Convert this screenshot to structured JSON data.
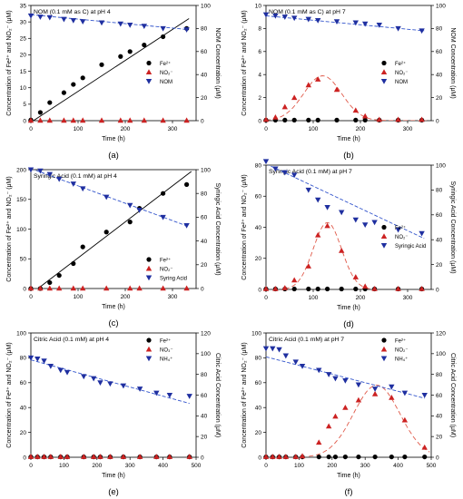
{
  "chart_data": [
    {
      "type": "scatter",
      "panel_label": "(a)",
      "title": "NOM (0.1 mM as C) at pH 4",
      "xlabel": "Time (h)",
      "ylabel": "Concentration of Fe²⁺ and NO₂⁻ (μM)",
      "y2label": "NOM Concentration (μM)",
      "xlim": [
        0,
        350
      ],
      "ylim": [
        0,
        35
      ],
      "y2lim": [
        0,
        100
      ],
      "xticks": [
        "0",
        "100",
        "200",
        "300"
      ],
      "yticks": [
        "0",
        "5",
        "10",
        "15",
        "20",
        "25",
        "30",
        "35"
      ],
      "y2ticks": [
        "0",
        "20",
        "40",
        "60",
        "80",
        "100"
      ],
      "legend_position": "center-right",
      "series": [
        {
          "name": "Fe²⁺",
          "marker": "circle",
          "color": "#000000",
          "axis": "left",
          "x": [
            0,
            20,
            40,
            70,
            90,
            110,
            150,
            190,
            210,
            240,
            280,
            330
          ],
          "y": [
            0.2,
            2.5,
            5.5,
            8.5,
            11,
            13,
            17,
            19.5,
            21,
            23,
            25.5,
            28
          ]
        },
        {
          "name": "NO₂⁻",
          "marker": "triangle-up",
          "color": "#cc2222",
          "axis": "left",
          "x": [
            0,
            20,
            40,
            70,
            90,
            110,
            150,
            190,
            210,
            240,
            280,
            330
          ],
          "y": [
            0.1,
            0.1,
            0.1,
            0.1,
            0.1,
            0.1,
            0.1,
            0.1,
            0.1,
            0.1,
            0.1,
            0.1
          ]
        },
        {
          "name": "NOM",
          "marker": "triangle-down",
          "color": "#1f2fa0",
          "axis": "right",
          "x": [
            0,
            20,
            40,
            70,
            90,
            110,
            150,
            190,
            210,
            240,
            280,
            330
          ],
          "y": [
            91,
            90,
            89.5,
            88,
            87,
            86,
            85,
            84,
            83,
            82,
            80,
            79
          ]
        }
      ],
      "fits": [
        {
          "kind": "linear",
          "color": "#000000",
          "axis": "left",
          "x0": 0,
          "y0": -0.5,
          "x1": 335,
          "y1": 31
        },
        {
          "kind": "linear",
          "color": "#3355cc",
          "axis": "right",
          "x0": 0,
          "y0": 92,
          "x1": 335,
          "y1": 79
        }
      ]
    },
    {
      "type": "scatter",
      "panel_label": "(b)",
      "title": "NOM (0.1 mM as C) at pH 7",
      "xlabel": "Time (h)",
      "ylabel": "Concentration of Fe²⁺ and NO₂⁻ (μM)",
      "y2label": "NOM Concentration (μM)",
      "xlim": [
        0,
        350
      ],
      "ylim": [
        0,
        10
      ],
      "y2lim": [
        0,
        100
      ],
      "xticks": [
        "0",
        "100",
        "200",
        "300"
      ],
      "yticks": [
        "0",
        "2",
        "4",
        "6",
        "8",
        "10"
      ],
      "y2ticks": [
        "0",
        "20",
        "40",
        "60",
        "80",
        "100"
      ],
      "legend_position": "center-right",
      "series": [
        {
          "name": "Fe²⁺",
          "marker": "circle",
          "color": "#000000",
          "axis": "left",
          "x": [
            0,
            20,
            40,
            60,
            90,
            110,
            150,
            190,
            210,
            240,
            280,
            330
          ],
          "y": [
            0.05,
            0.05,
            0.05,
            0.05,
            0.05,
            0.05,
            0.05,
            0.05,
            0.05,
            0.05,
            0.05,
            0.05
          ]
        },
        {
          "name": "NO₂⁻",
          "marker": "triangle-up",
          "color": "#cc2222",
          "axis": "left",
          "x": [
            0,
            20,
            40,
            60,
            90,
            110,
            150,
            190,
            210,
            240,
            280,
            330
          ],
          "y": [
            0.1,
            0.3,
            1.2,
            2.0,
            3.1,
            3.6,
            2.7,
            0.9,
            0.4,
            0.1,
            0.1,
            0.1
          ]
        },
        {
          "name": "NOM",
          "marker": "triangle-down",
          "color": "#1f2fa0",
          "axis": "right",
          "x": [
            0,
            20,
            40,
            60,
            90,
            110,
            150,
            190,
            210,
            240,
            280,
            330
          ],
          "y": [
            92,
            91,
            90,
            89,
            88,
            87,
            86,
            85,
            84,
            83,
            80,
            78
          ]
        }
      ],
      "fits": [
        {
          "kind": "gaussian",
          "color": "#e05a4a",
          "axis": "left",
          "amp": 3.9,
          "center": 120,
          "width": 40,
          "base": 0,
          "xmin": 0,
          "xmax": 340
        },
        {
          "kind": "linear",
          "color": "#3355cc",
          "axis": "right",
          "x0": 0,
          "y0": 91,
          "x1": 335,
          "y1": 78
        }
      ]
    },
    {
      "type": "scatter",
      "panel_label": "(c)",
      "title": "Syringic Acid (0.1 mM) at pH 4",
      "xlabel": "Time (h)",
      "ylabel": "Concentration of Fe²⁺ and NO₂⁻ (μM)",
      "y2label": "Syringic Acid Concentration (μM)",
      "xlim": [
        0,
        350
      ],
      "ylim": [
        0,
        200
      ],
      "y2lim": [
        0,
        100
      ],
      "xticks": [
        "0",
        "100",
        "200",
        "300"
      ],
      "yticks": [
        "0",
        "50",
        "100",
        "150",
        "200"
      ],
      "y2ticks": [
        "0",
        "20",
        "40",
        "60",
        "80",
        "100"
      ],
      "legend_position": "bottom-right",
      "series": [
        {
          "name": "Fe²⁺",
          "marker": "circle",
          "color": "#000000",
          "axis": "left",
          "x": [
            0,
            20,
            40,
            60,
            90,
            110,
            160,
            210,
            230,
            280,
            330
          ],
          "y": [
            0,
            0,
            10,
            22,
            42,
            70,
            95,
            112,
            135,
            160,
            175
          ]
        },
        {
          "name": "NO₂⁻",
          "marker": "triangle-up",
          "color": "#cc2222",
          "axis": "left",
          "x": [
            0,
            20,
            40,
            60,
            90,
            110,
            160,
            210,
            230,
            280,
            330
          ],
          "y": [
            0.5,
            0.5,
            0.5,
            0.5,
            0.5,
            0.5,
            0.5,
            0.5,
            0.5,
            0.5,
            0.5
          ]
        },
        {
          "name": "Syring Acid",
          "marker": "triangle-down",
          "color": "#1f2fa0",
          "axis": "right",
          "x": [
            0,
            20,
            40,
            60,
            90,
            110,
            160,
            210,
            230,
            280,
            330
          ],
          "y": [
            100,
            99,
            96,
            92,
            88,
            84,
            77,
            70,
            66,
            60,
            53
          ]
        }
      ],
      "fits": [
        {
          "kind": "linear",
          "color": "#000000",
          "axis": "left",
          "x0": 15,
          "y0": 0,
          "x1": 340,
          "y1": 197
        },
        {
          "kind": "linear",
          "color": "#3355cc",
          "axis": "right",
          "x0": 0,
          "y0": 101,
          "x1": 335,
          "y1": 52
        }
      ]
    },
    {
      "type": "scatter",
      "panel_label": "(d)",
      "title": "Syringic Acid (0.1 mM) at pH 7",
      "xlabel": "Time (h)",
      "ylabel": "Concentration of Fe²⁺ and NO₂⁻ (μM)",
      "y2label": "Syringic Acid Concentration (μM)",
      "xlim": [
        0,
        350
      ],
      "ylim": [
        0,
        80
      ],
      "y2lim": [
        0,
        100
      ],
      "xticks": [
        "0",
        "100",
        "200",
        "300"
      ],
      "yticks": [
        "0",
        "20",
        "40",
        "60",
        "80"
      ],
      "y2ticks": [
        "0",
        "20",
        "40",
        "60",
        "80",
        "100"
      ],
      "legend_position": "center-right",
      "series": [
        {
          "name": "Fe²⁺",
          "marker": "circle",
          "color": "#000000",
          "axis": "left",
          "x": [
            0,
            20,
            40,
            60,
            90,
            110,
            130,
            160,
            190,
            210,
            230,
            280,
            330
          ],
          "y": [
            0.3,
            0.3,
            0.3,
            0.3,
            0.3,
            0.3,
            0.3,
            0.3,
            0.3,
            0.3,
            0.3,
            0.3,
            0.3
          ]
        },
        {
          "name": "NO₂⁻",
          "marker": "triangle-up",
          "color": "#cc2222",
          "axis": "left",
          "x": [
            0,
            20,
            40,
            60,
            90,
            110,
            130,
            160,
            190,
            210,
            230,
            280,
            330
          ],
          "y": [
            0.5,
            0.5,
            1,
            6,
            15,
            35,
            41,
            25,
            8,
            2,
            0.5,
            0.5,
            0.5
          ]
        },
        {
          "name": "Syringic Acid",
          "marker": "triangle-down",
          "color": "#1f2fa0",
          "axis": "right",
          "x": [
            0,
            20,
            40,
            60,
            90,
            110,
            130,
            160,
            190,
            210,
            230,
            280,
            330
          ],
          "y": [
            103,
            97,
            94,
            92,
            80,
            72,
            66,
            62,
            56,
            52,
            54,
            48,
            45
          ]
        }
      ],
      "fits": [
        {
          "kind": "gaussian",
          "color": "#e05a4a",
          "axis": "left",
          "amp": 43,
          "center": 130,
          "width": 30,
          "base": 0,
          "xmin": 40,
          "xmax": 240
        },
        {
          "kind": "linear",
          "color": "#3355cc",
          "axis": "right",
          "x0": 0,
          "y0": 101,
          "x1": 335,
          "y1": 41
        }
      ]
    },
    {
      "type": "scatter",
      "panel_label": "(e)",
      "title": "Citric Acid (0.1 mM) at pH 4",
      "xlabel": "Time (h)",
      "ylabel": "Concentration of Fe²⁺ and NO₂⁻ (μM)",
      "y2label": "Citric Acid Concentration (μM)",
      "xlim": [
        0,
        500
      ],
      "ylim": [
        0,
        100
      ],
      "y2lim": [
        0,
        120
      ],
      "xticks": [
        "0",
        "100",
        "200",
        "300",
        "400",
        "500"
      ],
      "yticks": [
        "0",
        "20",
        "40",
        "60",
        "80",
        "100"
      ],
      "y2ticks": [
        "0",
        "20",
        "40",
        "60",
        "80",
        "100",
        "120"
      ],
      "legend_position": "top-right",
      "series": [
        {
          "name": "Fe²⁺",
          "marker": "circle",
          "color": "#000000",
          "axis": "left",
          "x": [
            0,
            20,
            40,
            60,
            90,
            110,
            160,
            190,
            210,
            240,
            280,
            330,
            380,
            420,
            480
          ],
          "y": [
            0.3,
            0.3,
            0.3,
            0.3,
            0.3,
            0.3,
            0.3,
            0.3,
            0.3,
            0.3,
            0.3,
            0.3,
            0.3,
            0.3,
            0.3
          ]
        },
        {
          "name": "NO₃⁻",
          "marker": "triangle-up",
          "color": "#cc2222",
          "axis": "left",
          "x": [
            0,
            20,
            40,
            60,
            90,
            110,
            160,
            190,
            210,
            240,
            280,
            330,
            380,
            420,
            480
          ],
          "y": [
            0.5,
            0.5,
            0.5,
            0.5,
            0.5,
            0.5,
            0.5,
            0.5,
            0.5,
            0.5,
            0.5,
            0.5,
            0.5,
            0.5,
            0.5
          ]
        },
        {
          "name": "NH₄⁺",
          "marker": "triangle-down",
          "color": "#1f2fa0",
          "axis": "right",
          "x": [
            0,
            20,
            40,
            60,
            90,
            110,
            160,
            190,
            210,
            240,
            280,
            330,
            380,
            420,
            480
          ],
          "y": [
            96,
            95,
            93,
            88,
            84,
            82,
            78,
            76,
            72,
            71,
            69,
            66,
            62,
            60,
            59
          ]
        }
      ],
      "fits": [
        {
          "kind": "linear",
          "color": "#3355cc",
          "axis": "right",
          "x0": 0,
          "y0": 94,
          "x1": 480,
          "y1": 52
        }
      ]
    },
    {
      "type": "scatter",
      "panel_label": "(f)",
      "title": "Citric Acid (0.1 mM) at pH 7",
      "xlabel": "Time (h)",
      "ylabel": "Concentration of Fe²⁺ and NO₂⁻ (μM)",
      "y2label": "Citric Acid Concentration (μM)",
      "xlim": [
        0,
        500
      ],
      "ylim": [
        0,
        100
      ],
      "y2lim": [
        0,
        120
      ],
      "xticks": [
        "0",
        "100",
        "200",
        "300",
        "400",
        "500"
      ],
      "yticks": [
        "0",
        "20",
        "40",
        "60",
        "80",
        "100"
      ],
      "y2ticks": [
        "0",
        "20",
        "40",
        "60",
        "80",
        "100",
        "120"
      ],
      "legend_position": "top-right",
      "series": [
        {
          "name": "Fe²⁺",
          "marker": "circle",
          "color": "#000000",
          "axis": "left",
          "x": [
            0,
            20,
            40,
            60,
            90,
            110,
            160,
            190,
            210,
            240,
            280,
            330,
            380,
            420,
            480
          ],
          "y": [
            0.3,
            0.3,
            0.3,
            0.3,
            0.3,
            0.3,
            0.3,
            0.3,
            0.3,
            0.3,
            0.3,
            0.3,
            0.3,
            0.3,
            0.3
          ]
        },
        {
          "name": "NO₂⁻",
          "marker": "triangle-up",
          "color": "#cc2222",
          "axis": "left",
          "x": [
            0,
            20,
            40,
            60,
            90,
            110,
            160,
            190,
            210,
            240,
            280,
            330,
            380,
            420,
            480
          ],
          "y": [
            0.5,
            0.5,
            0.5,
            0.5,
            0.5,
            1,
            12,
            25,
            33,
            40,
            46,
            51,
            48,
            30,
            8
          ]
        },
        {
          "name": "NH₄⁺",
          "marker": "triangle-down",
          "color": "#1f2fa0",
          "axis": "right",
          "x": [
            0,
            20,
            40,
            60,
            90,
            110,
            160,
            190,
            210,
            240,
            280,
            330,
            380,
            420,
            480
          ],
          "y": [
            105,
            105,
            104,
            98,
            92,
            88,
            84,
            80,
            76,
            74,
            70,
            66,
            68,
            62,
            60
          ]
        }
      ],
      "fits": [
        {
          "kind": "gaussian",
          "color": "#e05a4a",
          "axis": "left",
          "amp": 58,
          "center": 335,
          "width": 70,
          "base": 0,
          "xmin": 130,
          "xmax": 495
        },
        {
          "kind": "linear",
          "color": "#3355cc",
          "axis": "right",
          "x0": 0,
          "y0": 97,
          "x1": 480,
          "y1": 57
        }
      ]
    }
  ]
}
